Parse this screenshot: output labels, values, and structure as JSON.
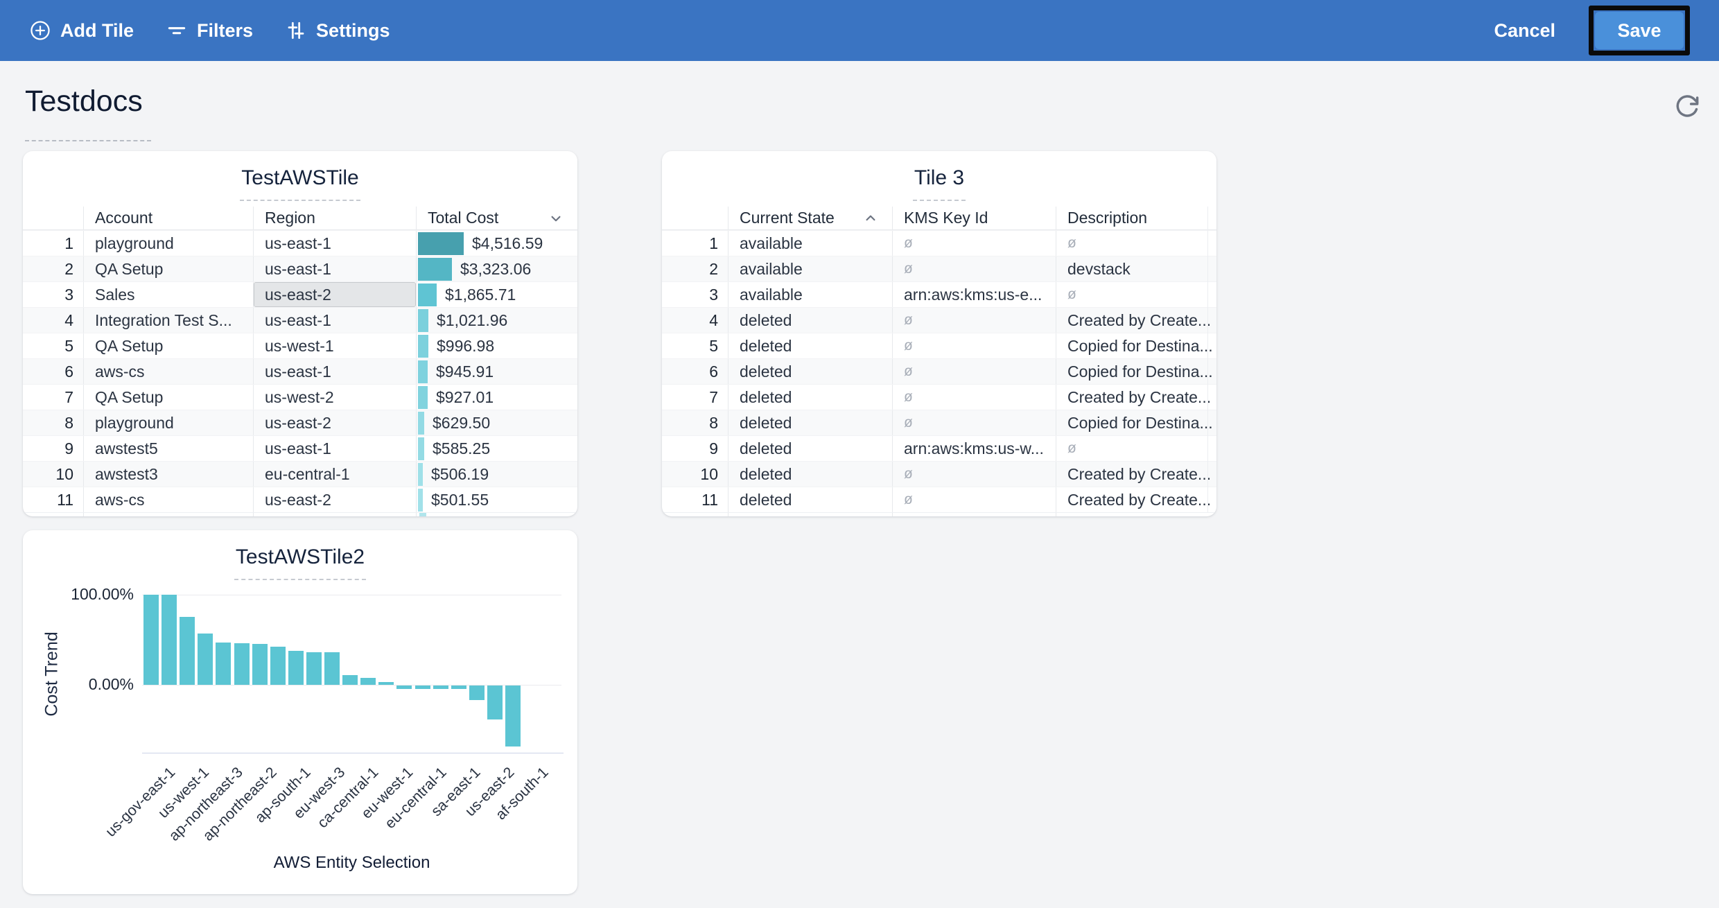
{
  "toolbar": {
    "bg": "#3a74c2",
    "add_tile_label": "Add Tile",
    "filters_label": "Filters",
    "settings_label": "Settings",
    "cancel_label": "Cancel",
    "save_label": "Save",
    "save_button_color": "#4a90da",
    "save_highlight_border": "#0a0a0a"
  },
  "page": {
    "title": "Testdocs"
  },
  "tiles": {
    "aws_tile": {
      "title": "TestAWSTile",
      "columns": [
        "Account",
        "Region",
        "Total Cost"
      ],
      "sort": {
        "column": "Total Cost",
        "direction": "desc"
      },
      "selected_cell": {
        "row_index": 2,
        "column": "region",
        "bg": "#e4e6e8"
      },
      "bar_colors": [
        "#47a0ae",
        "#54b6c5",
        "#5fc4d3",
        "#7bd0dc",
        "#7dd1dd",
        "#7fd2de",
        "#81d3de",
        "#92dae4",
        "#94dbe4",
        "#9fe0e8",
        "#a1e1e9"
      ],
      "max_cost_value": 4516.59,
      "rows": [
        {
          "n": "1",
          "account": "playground",
          "region": "us-east-1",
          "cost": "$4,516.59",
          "value": 4516.59
        },
        {
          "n": "2",
          "account": "QA Setup",
          "region": "us-east-1",
          "cost": "$3,323.06",
          "value": 3323.06
        },
        {
          "n": "3",
          "account": "Sales",
          "region": "us-east-2",
          "cost": "$1,865.71",
          "value": 1865.71
        },
        {
          "n": "4",
          "account": "Integration Test S...",
          "region": "us-east-1",
          "cost": "$1,021.96",
          "value": 1021.96
        },
        {
          "n": "5",
          "account": "QA Setup",
          "region": "us-west-1",
          "cost": "$996.98",
          "value": 996.98
        },
        {
          "n": "6",
          "account": "aws-cs",
          "region": "us-east-1",
          "cost": "$945.91",
          "value": 945.91
        },
        {
          "n": "7",
          "account": "QA Setup",
          "region": "us-west-2",
          "cost": "$927.01",
          "value": 927.01
        },
        {
          "n": "8",
          "account": "playground",
          "region": "us-east-2",
          "cost": "$629.50",
          "value": 629.5
        },
        {
          "n": "9",
          "account": "awstest5",
          "region": "us-east-1",
          "cost": "$585.25",
          "value": 585.25
        },
        {
          "n": "10",
          "account": "awstest3",
          "region": "eu-central-1",
          "cost": "$506.19",
          "value": 506.19
        },
        {
          "n": "11",
          "account": "aws-cs",
          "region": "us-east-2",
          "cost": "$501.55",
          "value": 501.55
        }
      ]
    },
    "tile3": {
      "title": "Tile 3",
      "columns": [
        "Current State",
        "KMS Key Id",
        "Description"
      ],
      "sort": {
        "column": "Current State",
        "direction": "asc"
      },
      "null_symbol": "ø",
      "rows": [
        {
          "n": "1",
          "state": "available",
          "kms": null,
          "desc": null
        },
        {
          "n": "2",
          "state": "available",
          "kms": null,
          "desc": "devstack"
        },
        {
          "n": "3",
          "state": "available",
          "kms": "arn:aws:kms:us-e...",
          "desc": null
        },
        {
          "n": "4",
          "state": "deleted",
          "kms": null,
          "desc": "Created by Create..."
        },
        {
          "n": "5",
          "state": "deleted",
          "kms": null,
          "desc": "Copied for Destina..."
        },
        {
          "n": "6",
          "state": "deleted",
          "kms": null,
          "desc": "Copied for Destina..."
        },
        {
          "n": "7",
          "state": "deleted",
          "kms": null,
          "desc": "Created by Create..."
        },
        {
          "n": "8",
          "state": "deleted",
          "kms": null,
          "desc": "Copied for Destina..."
        },
        {
          "n": "9",
          "state": "deleted",
          "kms": "arn:aws:kms:us-w...",
          "desc": null
        },
        {
          "n": "10",
          "state": "deleted",
          "kms": null,
          "desc": "Created by Create..."
        },
        {
          "n": "11",
          "state": "deleted",
          "kms": null,
          "desc": "Created by Create..."
        }
      ]
    },
    "chart_tile": {
      "title": "TestAWSTile2"
    }
  },
  "chart_data": {
    "type": "bar",
    "title": "TestAWSTile2",
    "xlabel": "AWS Entity Selection",
    "ylabel": "Cost Trend",
    "yticks": [
      "100.00%",
      "0.00%"
    ],
    "ylim": [
      -75,
      115
    ],
    "grid": "horizontal",
    "legend": "none",
    "bar_color": "#5bc5d3",
    "values_pct": [
      100,
      100,
      75,
      57,
      47,
      46,
      45,
      42,
      38,
      36,
      36,
      11,
      8,
      3,
      -4,
      -4,
      -4,
      -4,
      -16,
      -38,
      -68
    ],
    "x_tick_labels": [
      "us-gov-east-1",
      "us-west-1",
      "ap-northeast-3",
      "ap-northeast-2",
      "ap-south-1",
      "eu-west-3",
      "ca-central-1",
      "eu-west-1",
      "eu-central-1",
      "sa-east-1",
      "us-east-2",
      "af-south-1"
    ],
    "labels_shown_every_other_bar": true
  },
  "icons": {
    "add_tile": "circle-plus-icon",
    "filters": "filter-lines-icon",
    "settings": "sliders-icon",
    "refresh": "refresh-icon",
    "sort_desc": "chevron-down-icon",
    "sort_asc": "chevron-up-icon"
  }
}
